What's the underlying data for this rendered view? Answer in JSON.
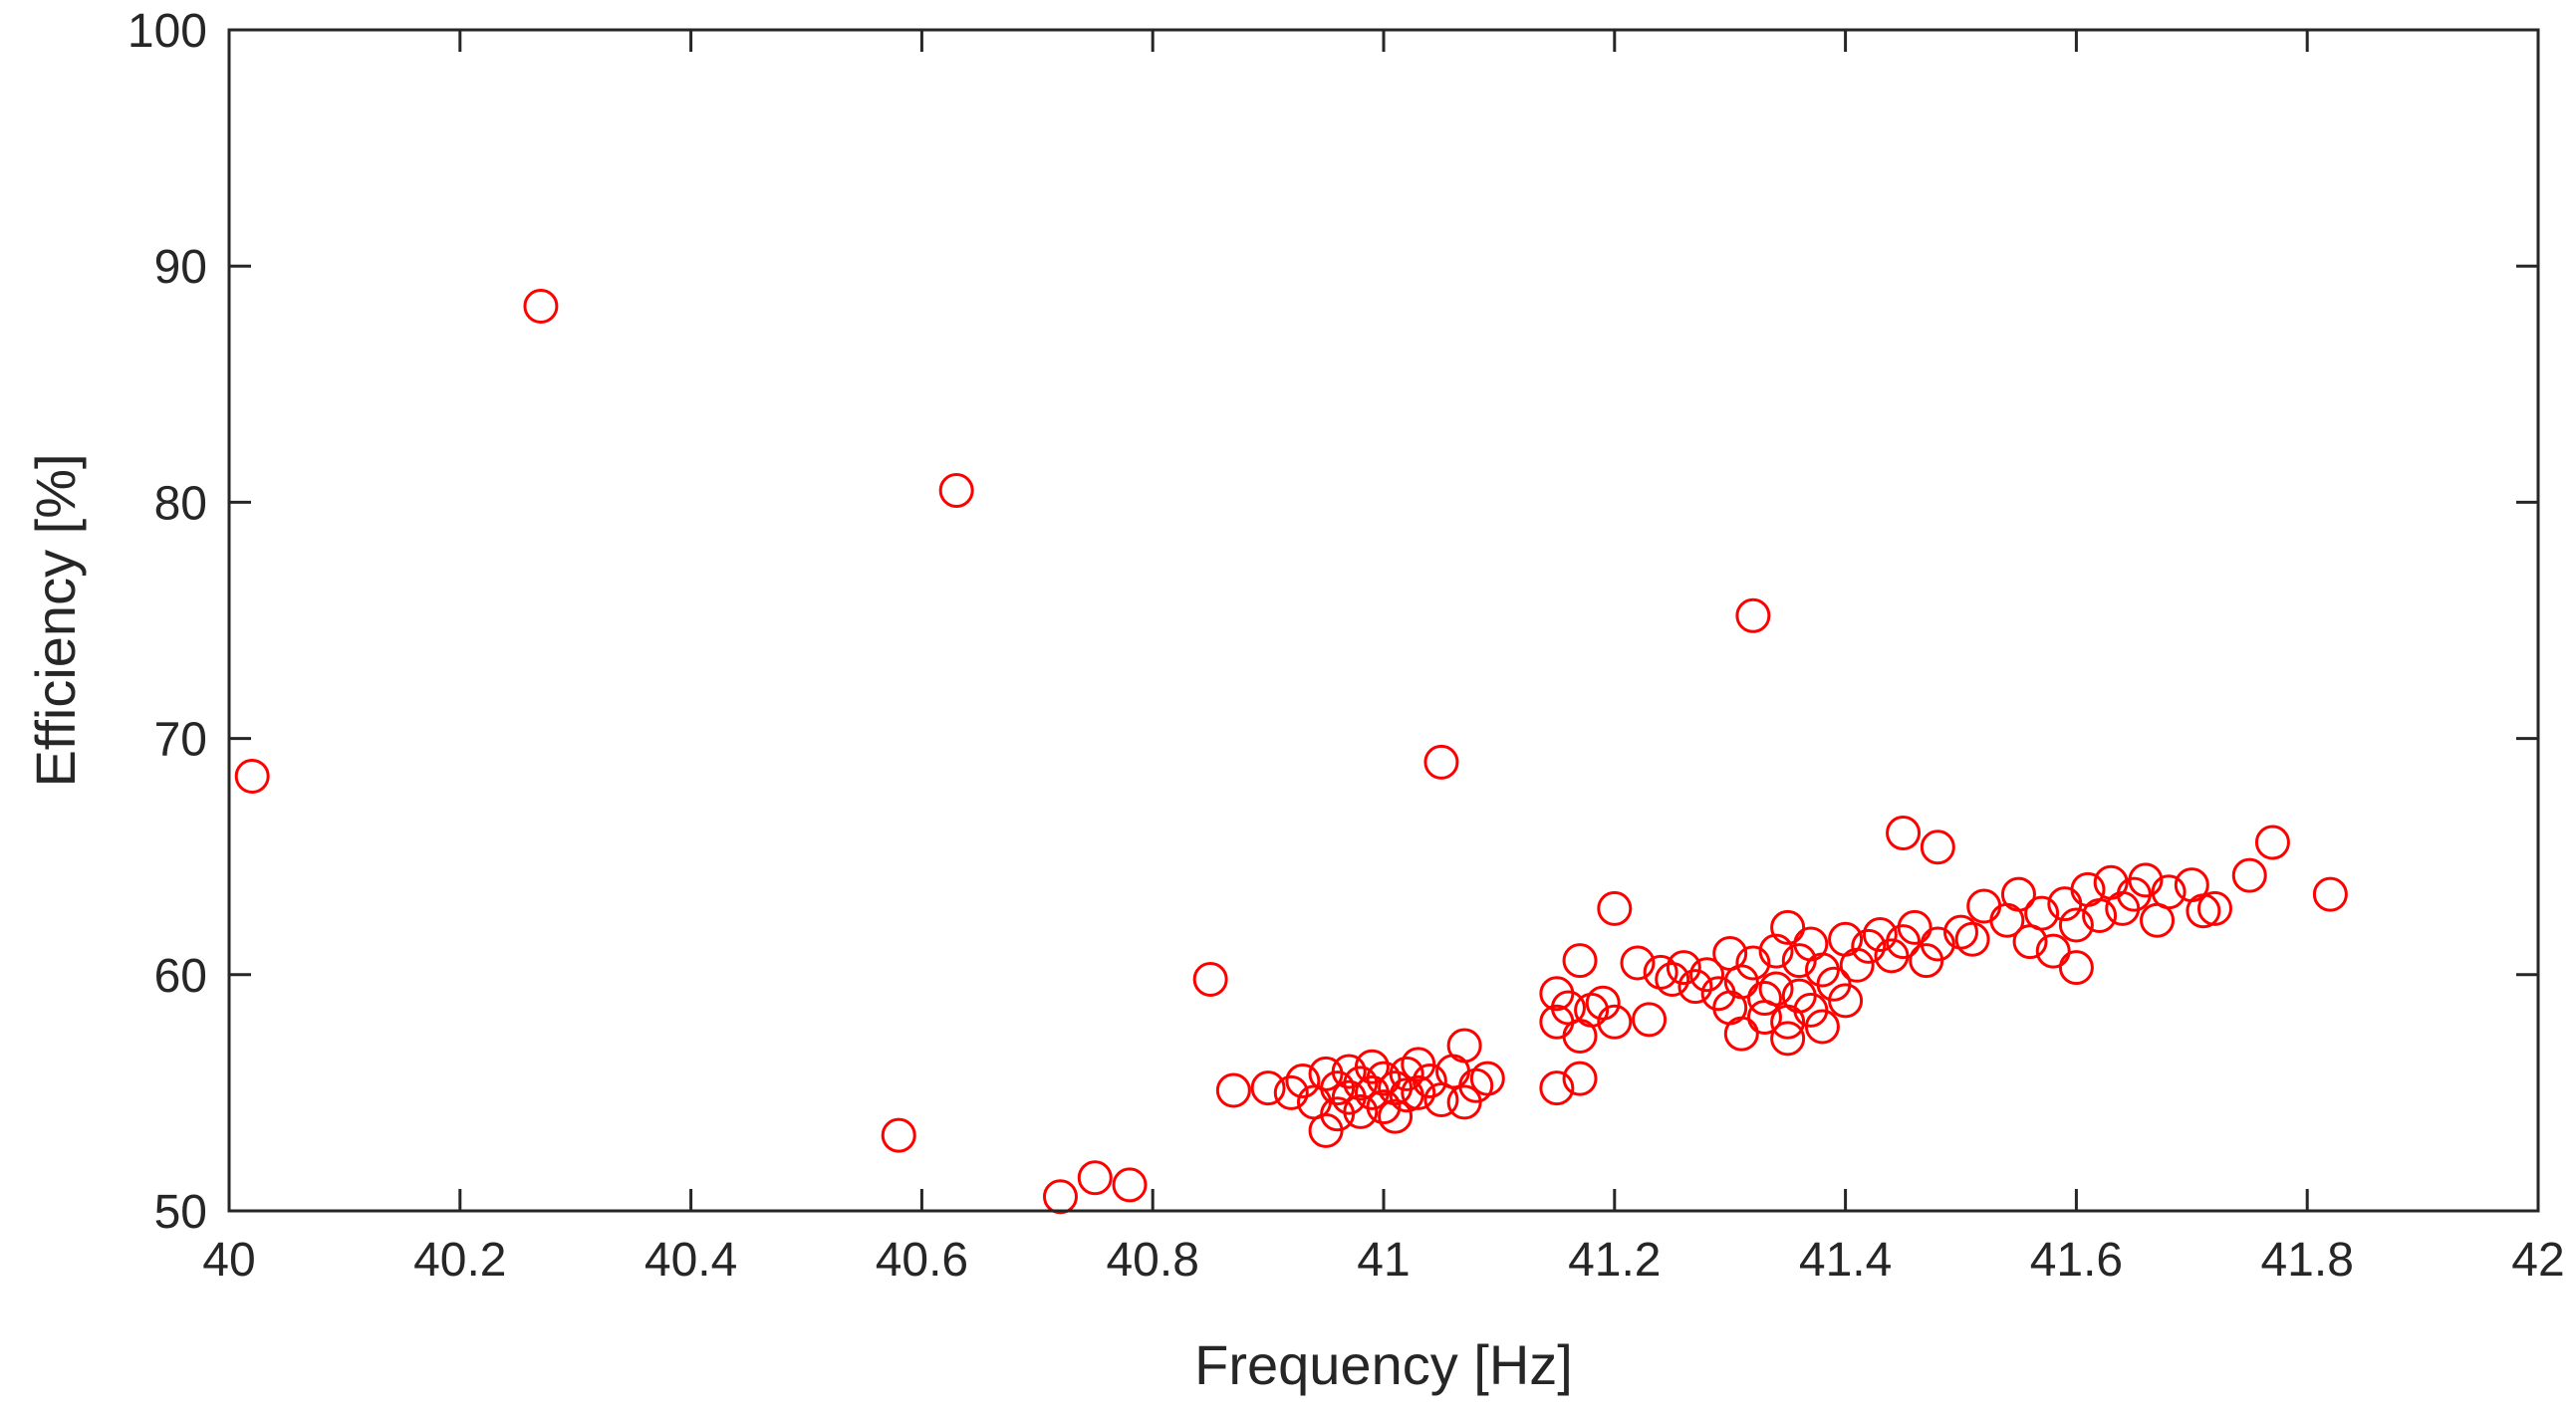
{
  "chart_data": {
    "type": "scatter",
    "xlabel": "Frequency [Hz]",
    "ylabel": "Efficiency [%]",
    "xlim": [
      40,
      42
    ],
    "ylim": [
      50,
      100
    ],
    "x_ticks": [
      40,
      40.2,
      40.4,
      40.6,
      40.8,
      41,
      41.2,
      41.4,
      41.6,
      41.8,
      42
    ],
    "x_tick_labels": [
      "40",
      "40.2",
      "40.4",
      "40.6",
      "40.8",
      "41",
      "41.2",
      "41.4",
      "41.6",
      "41.8",
      "42"
    ],
    "y_ticks": [
      50,
      60,
      70,
      80,
      90,
      100
    ],
    "y_tick_labels": [
      "50",
      "60",
      "70",
      "80",
      "90",
      "100"
    ],
    "grid": false,
    "box": true,
    "marker": "circle-open",
    "marker_color": "#ff0000",
    "axis_color": "#262626",
    "series": [
      {
        "points": [
          [
            40.02,
            68.4
          ],
          [
            40.27,
            88.3
          ],
          [
            40.63,
            80.5
          ],
          [
            40.58,
            53.2
          ],
          [
            40.72,
            50.6
          ],
          [
            40.75,
            51.4
          ],
          [
            40.78,
            51.1
          ],
          [
            40.85,
            59.8
          ],
          [
            40.87,
            55.1
          ],
          [
            40.9,
            55.2
          ],
          [
            40.92,
            55.0
          ],
          [
            40.93,
            55.5
          ],
          [
            40.94,
            54.6
          ],
          [
            40.95,
            55.8
          ],
          [
            40.95,
            53.4
          ],
          [
            40.96,
            55.2
          ],
          [
            40.96,
            54.1
          ],
          [
            40.97,
            55.9
          ],
          [
            40.97,
            54.8
          ],
          [
            40.98,
            55.4
          ],
          [
            40.98,
            54.2
          ],
          [
            40.99,
            56.1
          ],
          [
            40.99,
            55.0
          ],
          [
            41.0,
            55.6
          ],
          [
            41.0,
            54.4
          ],
          [
            41.01,
            55.2
          ],
          [
            41.01,
            54.0
          ],
          [
            41.02,
            55.8
          ],
          [
            41.02,
            54.9
          ],
          [
            41.03,
            56.2
          ],
          [
            41.03,
            55.0
          ],
          [
            41.04,
            55.5
          ],
          [
            41.05,
            54.7
          ],
          [
            41.05,
            69.0
          ],
          [
            41.06,
            55.9
          ],
          [
            41.07,
            57.0
          ],
          [
            41.07,
            54.6
          ],
          [
            41.08,
            55.3
          ],
          [
            41.09,
            55.6
          ],
          [
            41.15,
            59.2
          ],
          [
            41.15,
            58.0
          ],
          [
            41.15,
            55.2
          ],
          [
            41.16,
            58.6
          ],
          [
            41.17,
            60.6
          ],
          [
            41.17,
            57.4
          ],
          [
            41.17,
            55.6
          ],
          [
            41.18,
            58.5
          ],
          [
            41.19,
            58.8
          ],
          [
            41.2,
            62.8
          ],
          [
            41.2,
            58.0
          ],
          [
            41.22,
            60.5
          ],
          [
            41.23,
            58.1
          ],
          [
            41.24,
            60.1
          ],
          [
            41.25,
            59.8
          ],
          [
            41.26,
            60.3
          ],
          [
            41.27,
            59.5
          ],
          [
            41.28,
            60.0
          ],
          [
            41.29,
            59.2
          ],
          [
            41.3,
            60.9
          ],
          [
            41.3,
            58.6
          ],
          [
            41.31,
            59.7
          ],
          [
            41.31,
            57.5
          ],
          [
            41.32,
            75.2
          ],
          [
            41.32,
            60.5
          ],
          [
            41.33,
            59.0
          ],
          [
            41.33,
            58.2
          ],
          [
            41.34,
            61.0
          ],
          [
            41.34,
            59.4
          ],
          [
            41.35,
            62.0
          ],
          [
            41.35,
            58.0
          ],
          [
            41.35,
            57.3
          ],
          [
            41.36,
            60.6
          ],
          [
            41.36,
            59.1
          ],
          [
            41.37,
            61.3
          ],
          [
            41.37,
            58.5
          ],
          [
            41.38,
            60.2
          ],
          [
            41.38,
            57.8
          ],
          [
            41.39,
            59.6
          ],
          [
            41.4,
            61.5
          ],
          [
            41.4,
            58.9
          ],
          [
            41.41,
            60.4
          ],
          [
            41.42,
            61.2
          ],
          [
            41.43,
            61.7
          ],
          [
            41.44,
            60.8
          ],
          [
            41.45,
            66.0
          ],
          [
            41.45,
            61.4
          ],
          [
            41.46,
            62.0
          ],
          [
            41.47,
            60.6
          ],
          [
            41.48,
            65.4
          ],
          [
            41.48,
            61.3
          ],
          [
            41.5,
            61.8
          ],
          [
            41.51,
            61.5
          ],
          [
            41.52,
            62.9
          ],
          [
            41.54,
            62.3
          ],
          [
            41.55,
            63.4
          ],
          [
            41.56,
            61.4
          ],
          [
            41.57,
            62.6
          ],
          [
            41.58,
            61.0
          ],
          [
            41.59,
            63.0
          ],
          [
            41.6,
            62.1
          ],
          [
            41.6,
            60.3
          ],
          [
            41.61,
            63.6
          ],
          [
            41.62,
            62.5
          ],
          [
            41.63,
            63.9
          ],
          [
            41.64,
            62.8
          ],
          [
            41.65,
            63.4
          ],
          [
            41.66,
            64.0
          ],
          [
            41.67,
            62.3
          ],
          [
            41.68,
            63.5
          ],
          [
            41.7,
            63.8
          ],
          [
            41.71,
            62.7
          ],
          [
            41.72,
            62.8
          ],
          [
            41.75,
            64.2
          ],
          [
            41.77,
            65.6
          ],
          [
            41.82,
            63.4
          ]
        ]
      }
    ]
  }
}
